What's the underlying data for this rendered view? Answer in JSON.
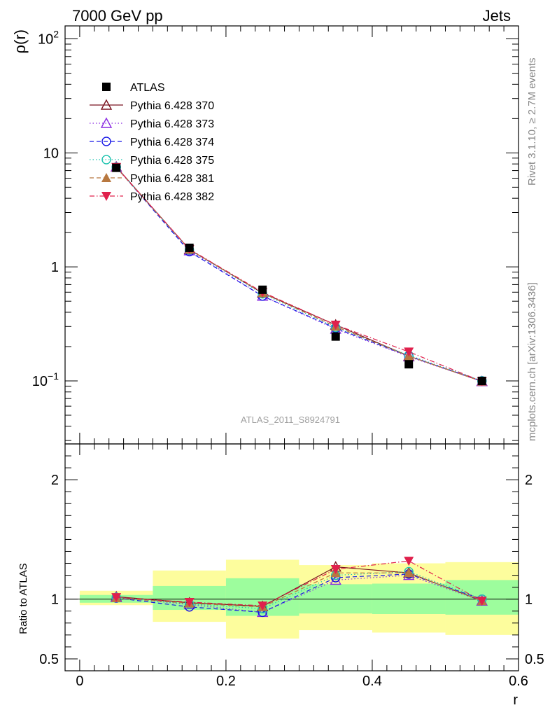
{
  "header": {
    "left_title": "7000 GeV pp",
    "right_title": "Jets"
  },
  "side_labels": {
    "rivet": "Rivet 3.1.10, ≥ 2.7M events",
    "mcplots": "mcplots.cern.ch [arXiv:1306.3436]"
  },
  "analysis_label": "ATLAS_2011_S8924791",
  "colors": {
    "data": "#000000",
    "p370": "#7b1420",
    "p373": "#8a2be2",
    "p374": "#1414e6",
    "p375": "#20c4b0",
    "p381": "#b87840",
    "p382": "#e0204c",
    "band_inner": "#9dfd9d",
    "band_outer": "#fdfd9d"
  },
  "chart_data": [
    {
      "type": "line",
      "panel": "main",
      "ylabel": "ρ(r)",
      "yscale": "log",
      "xlim": [
        -0.02,
        0.6
      ],
      "ylim": [
        0.028,
        130
      ],
      "y_ticks": [
        {
          "value": 100,
          "label": "10²",
          "base": "10",
          "exp": "2"
        },
        {
          "value": 10,
          "label": "10"
        },
        {
          "value": 1,
          "label": "1"
        },
        {
          "value": 0.1,
          "label": "10⁻¹",
          "base": "10",
          "exp": "−1"
        }
      ],
      "x": [
        0.05,
        0.15,
        0.25,
        0.35,
        0.45,
        0.55
      ],
      "legend_position": "top-left",
      "series": [
        {
          "name": "ATLAS",
          "key": "data",
          "marker": "square-filled",
          "line": "none",
          "values": [
            7.4,
            1.47,
            0.63,
            0.245,
            0.14,
            0.1
          ]
        },
        {
          "name": "Pythia 6.428 370",
          "key": "p370",
          "marker": "triangle-open",
          "line": "solid",
          "values": [
            7.55,
            1.42,
            0.59,
            0.31,
            0.165,
            0.099
          ]
        },
        {
          "name": "Pythia 6.428 373",
          "key": "p373",
          "marker": "triangle-open",
          "line": "dotted",
          "values": [
            7.5,
            1.39,
            0.555,
            0.285,
            0.163,
            0.099
          ]
        },
        {
          "name": "Pythia 6.428 374",
          "key": "p374",
          "marker": "circle-open",
          "line": "dashed",
          "values": [
            7.5,
            1.36,
            0.555,
            0.29,
            0.165,
            0.1
          ]
        },
        {
          "name": "Pythia 6.428 375",
          "key": "p375",
          "marker": "circle-open",
          "line": "dotted",
          "values": [
            7.5,
            1.41,
            0.58,
            0.295,
            0.168,
            0.1
          ]
        },
        {
          "name": "Pythia 6.428 381",
          "key": "p381",
          "marker": "triangle-filled",
          "line": "dashed",
          "values": [
            7.45,
            1.42,
            0.59,
            0.3,
            0.165,
            0.099
          ]
        },
        {
          "name": "Pythia 6.428 382",
          "key": "p382",
          "marker": "triangle-down-filled",
          "line": "dashdot",
          "values": [
            7.5,
            1.43,
            0.6,
            0.31,
            0.18,
            0.099
          ]
        }
      ]
    },
    {
      "type": "line",
      "panel": "ratio",
      "xlabel": "r",
      "ylabel": "Ratio to ATLAS",
      "xlim": [
        -0.02,
        0.6
      ],
      "ylim": [
        0.4,
        2.3
      ],
      "x_ticks": [
        {
          "value": 0,
          "label": "0"
        },
        {
          "value": 0.2,
          "label": "0.2"
        },
        {
          "value": 0.4,
          "label": "0.4"
        },
        {
          "value": 0.6,
          "label": "0.6"
        }
      ],
      "y_ticks": [
        {
          "value": 0.5,
          "label": "0.5"
        },
        {
          "value": 1,
          "label": "1"
        },
        {
          "value": 2,
          "label": "2"
        }
      ],
      "reference_line": 1,
      "bins": [
        {
          "low": 0.0,
          "high": 0.1,
          "inner": [
            0.97,
            1.035
          ],
          "outer": [
            0.95,
            1.07
          ]
        },
        {
          "low": 0.1,
          "high": 0.2,
          "inner": [
            0.91,
            1.11
          ],
          "outer": [
            0.81,
            1.24
          ]
        },
        {
          "low": 0.2,
          "high": 0.3,
          "inner": [
            0.86,
            1.175
          ],
          "outer": [
            0.67,
            1.33
          ]
        },
        {
          "low": 0.3,
          "high": 0.4,
          "inner": [
            0.88,
            1.125
          ],
          "outer": [
            0.74,
            1.285
          ]
        },
        {
          "low": 0.4,
          "high": 0.5,
          "inner": [
            0.875,
            1.13
          ],
          "outer": [
            0.72,
            1.3
          ]
        },
        {
          "low": 0.5,
          "high": 0.6,
          "inner": [
            0.87,
            1.16
          ],
          "outer": [
            0.7,
            1.31
          ]
        }
      ],
      "x": [
        0.05,
        0.15,
        0.25,
        0.35,
        0.45,
        0.55
      ],
      "series": [
        {
          "name": "Pythia 6.428 370",
          "key": "p370",
          "values": [
            1.02,
            0.97,
            0.94,
            1.27,
            1.22,
            0.985
          ]
        },
        {
          "name": "Pythia 6.428 373",
          "key": "p373",
          "values": [
            1.015,
            0.955,
            0.89,
            1.16,
            1.2,
            0.985
          ]
        },
        {
          "name": "Pythia 6.428 374",
          "key": "p374",
          "values": [
            1.01,
            0.935,
            0.89,
            1.18,
            1.21,
            1.0
          ]
        },
        {
          "name": "Pythia 6.428 375",
          "key": "p375",
          "values": [
            1.015,
            0.96,
            0.92,
            1.2,
            1.23,
            1.0
          ]
        },
        {
          "name": "Pythia 6.428 381",
          "key": "p381",
          "values": [
            1.01,
            0.965,
            0.935,
            1.22,
            1.22,
            0.985
          ]
        },
        {
          "name": "Pythia 6.428 382",
          "key": "p382",
          "values": [
            1.015,
            0.975,
            0.945,
            1.25,
            1.32,
            0.985
          ]
        }
      ]
    }
  ]
}
